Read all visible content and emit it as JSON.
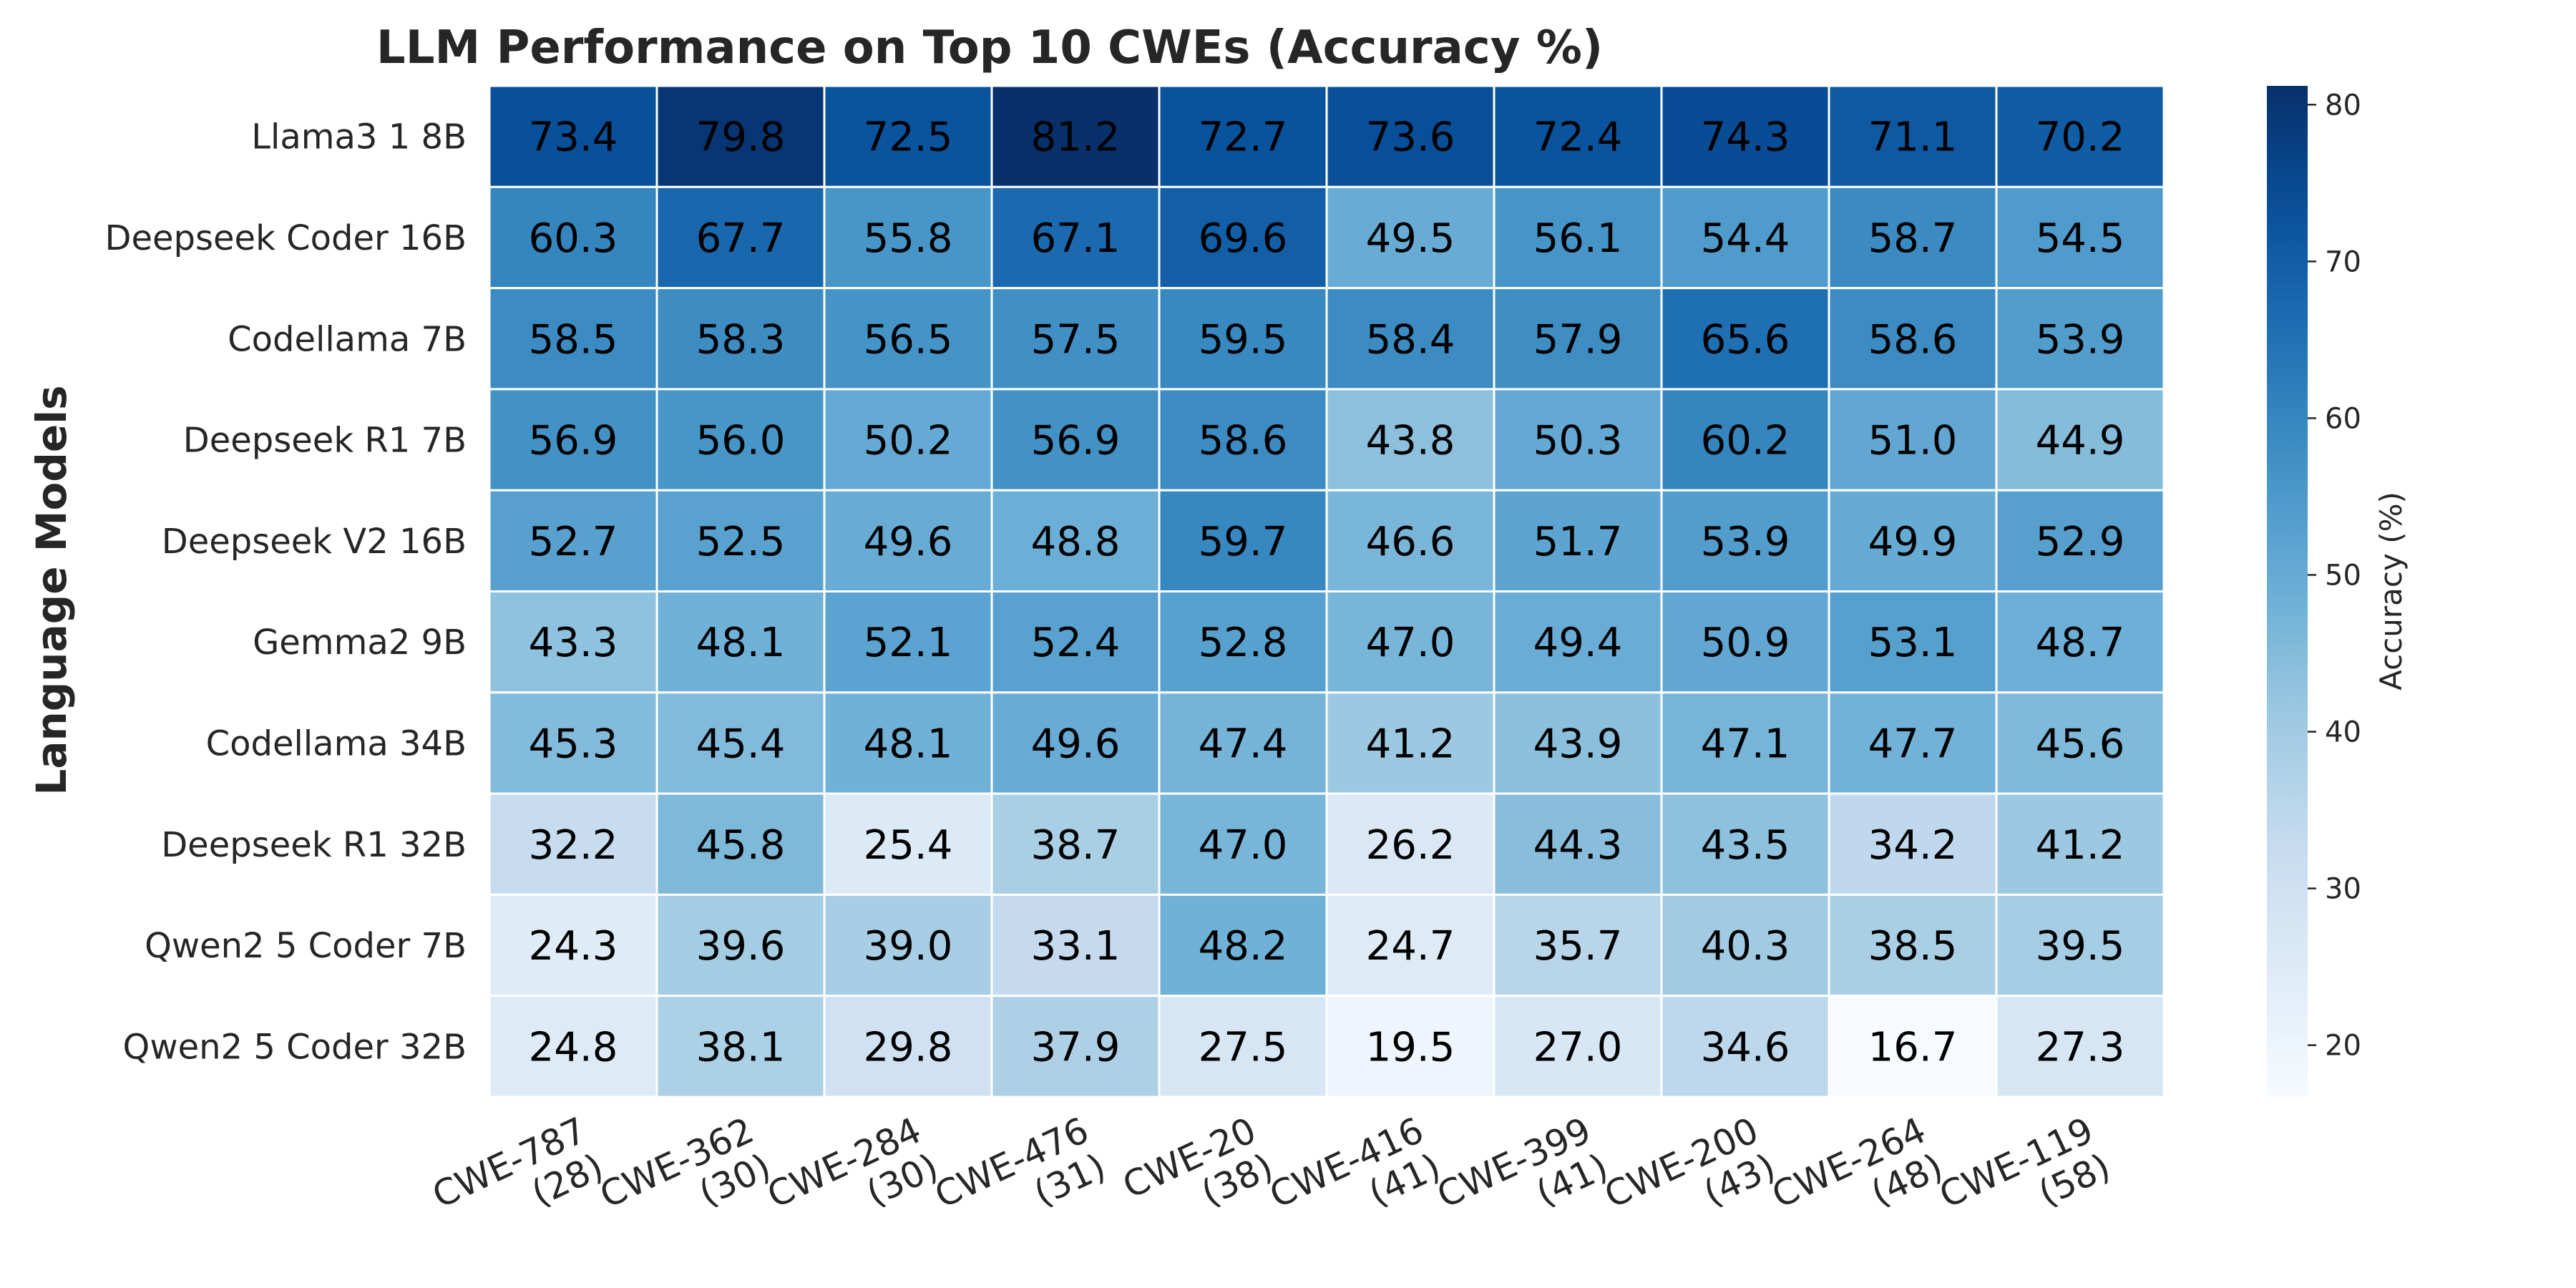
{
  "chart_data": {
    "type": "heatmap",
    "title": "LLM Performance on Top 10 CWEs (Accuracy %)",
    "ylabel": "Language Models",
    "xlabel": "",
    "rows": [
      "Llama3 1 8B",
      "Deepseek Coder 16B",
      "Codellama 7B",
      "Deepseek R1 7B",
      "Deepseek V2 16B",
      "Gemma2 9B",
      "Codellama 34B",
      "Deepseek R1 32B",
      "Qwen2 5 Coder 7B",
      "Qwen2 5 Coder 32B"
    ],
    "columns": [
      {
        "name": "CWE-787",
        "count": "(28)"
      },
      {
        "name": "CWE-362",
        "count": "(30)"
      },
      {
        "name": "CWE-284",
        "count": "(30)"
      },
      {
        "name": "CWE-476",
        "count": "(31)"
      },
      {
        "name": "CWE-20",
        "count": "(38)"
      },
      {
        "name": "CWE-416",
        "count": "(41)"
      },
      {
        "name": "CWE-399",
        "count": "(41)"
      },
      {
        "name": "CWE-200",
        "count": "(43)"
      },
      {
        "name": "CWE-264",
        "count": "(48)"
      },
      {
        "name": "CWE-119",
        "count": "(58)"
      }
    ],
    "values": [
      [
        73.4,
        79.8,
        72.5,
        81.2,
        72.7,
        73.6,
        72.4,
        74.3,
        71.1,
        70.2
      ],
      [
        60.3,
        67.7,
        55.8,
        67.1,
        69.6,
        49.5,
        56.1,
        54.4,
        58.7,
        54.5
      ],
      [
        58.5,
        58.3,
        56.5,
        57.5,
        59.5,
        58.4,
        57.9,
        65.6,
        58.6,
        53.9
      ],
      [
        56.9,
        56.0,
        50.2,
        56.9,
        58.6,
        43.8,
        50.3,
        60.2,
        51.0,
        44.9
      ],
      [
        52.7,
        52.5,
        49.6,
        48.8,
        59.7,
        46.6,
        51.7,
        53.9,
        49.9,
        52.9
      ],
      [
        43.3,
        48.1,
        52.1,
        52.4,
        52.8,
        47.0,
        49.4,
        50.9,
        53.1,
        48.7
      ],
      [
        45.3,
        45.4,
        48.1,
        49.6,
        47.4,
        41.2,
        43.9,
        47.1,
        47.7,
        45.6
      ],
      [
        32.2,
        45.8,
        25.4,
        38.7,
        47.0,
        26.2,
        44.3,
        43.5,
        34.2,
        41.2
      ],
      [
        24.3,
        39.6,
        39.0,
        33.1,
        48.2,
        24.7,
        35.7,
        40.3,
        38.5,
        39.5
      ],
      [
        24.8,
        38.1,
        29.8,
        37.9,
        27.5,
        19.5,
        27.0,
        34.6,
        16.7,
        27.3
      ]
    ],
    "value_format": "one decimal",
    "colormap": "Blues",
    "color_range": [
      16.7,
      81.2
    ],
    "colorbar": {
      "label": "Accuracy (%)",
      "ticks": [
        20,
        30,
        40,
        50,
        60,
        70,
        80
      ]
    },
    "grid": false,
    "legend": "colorbar-right"
  }
}
